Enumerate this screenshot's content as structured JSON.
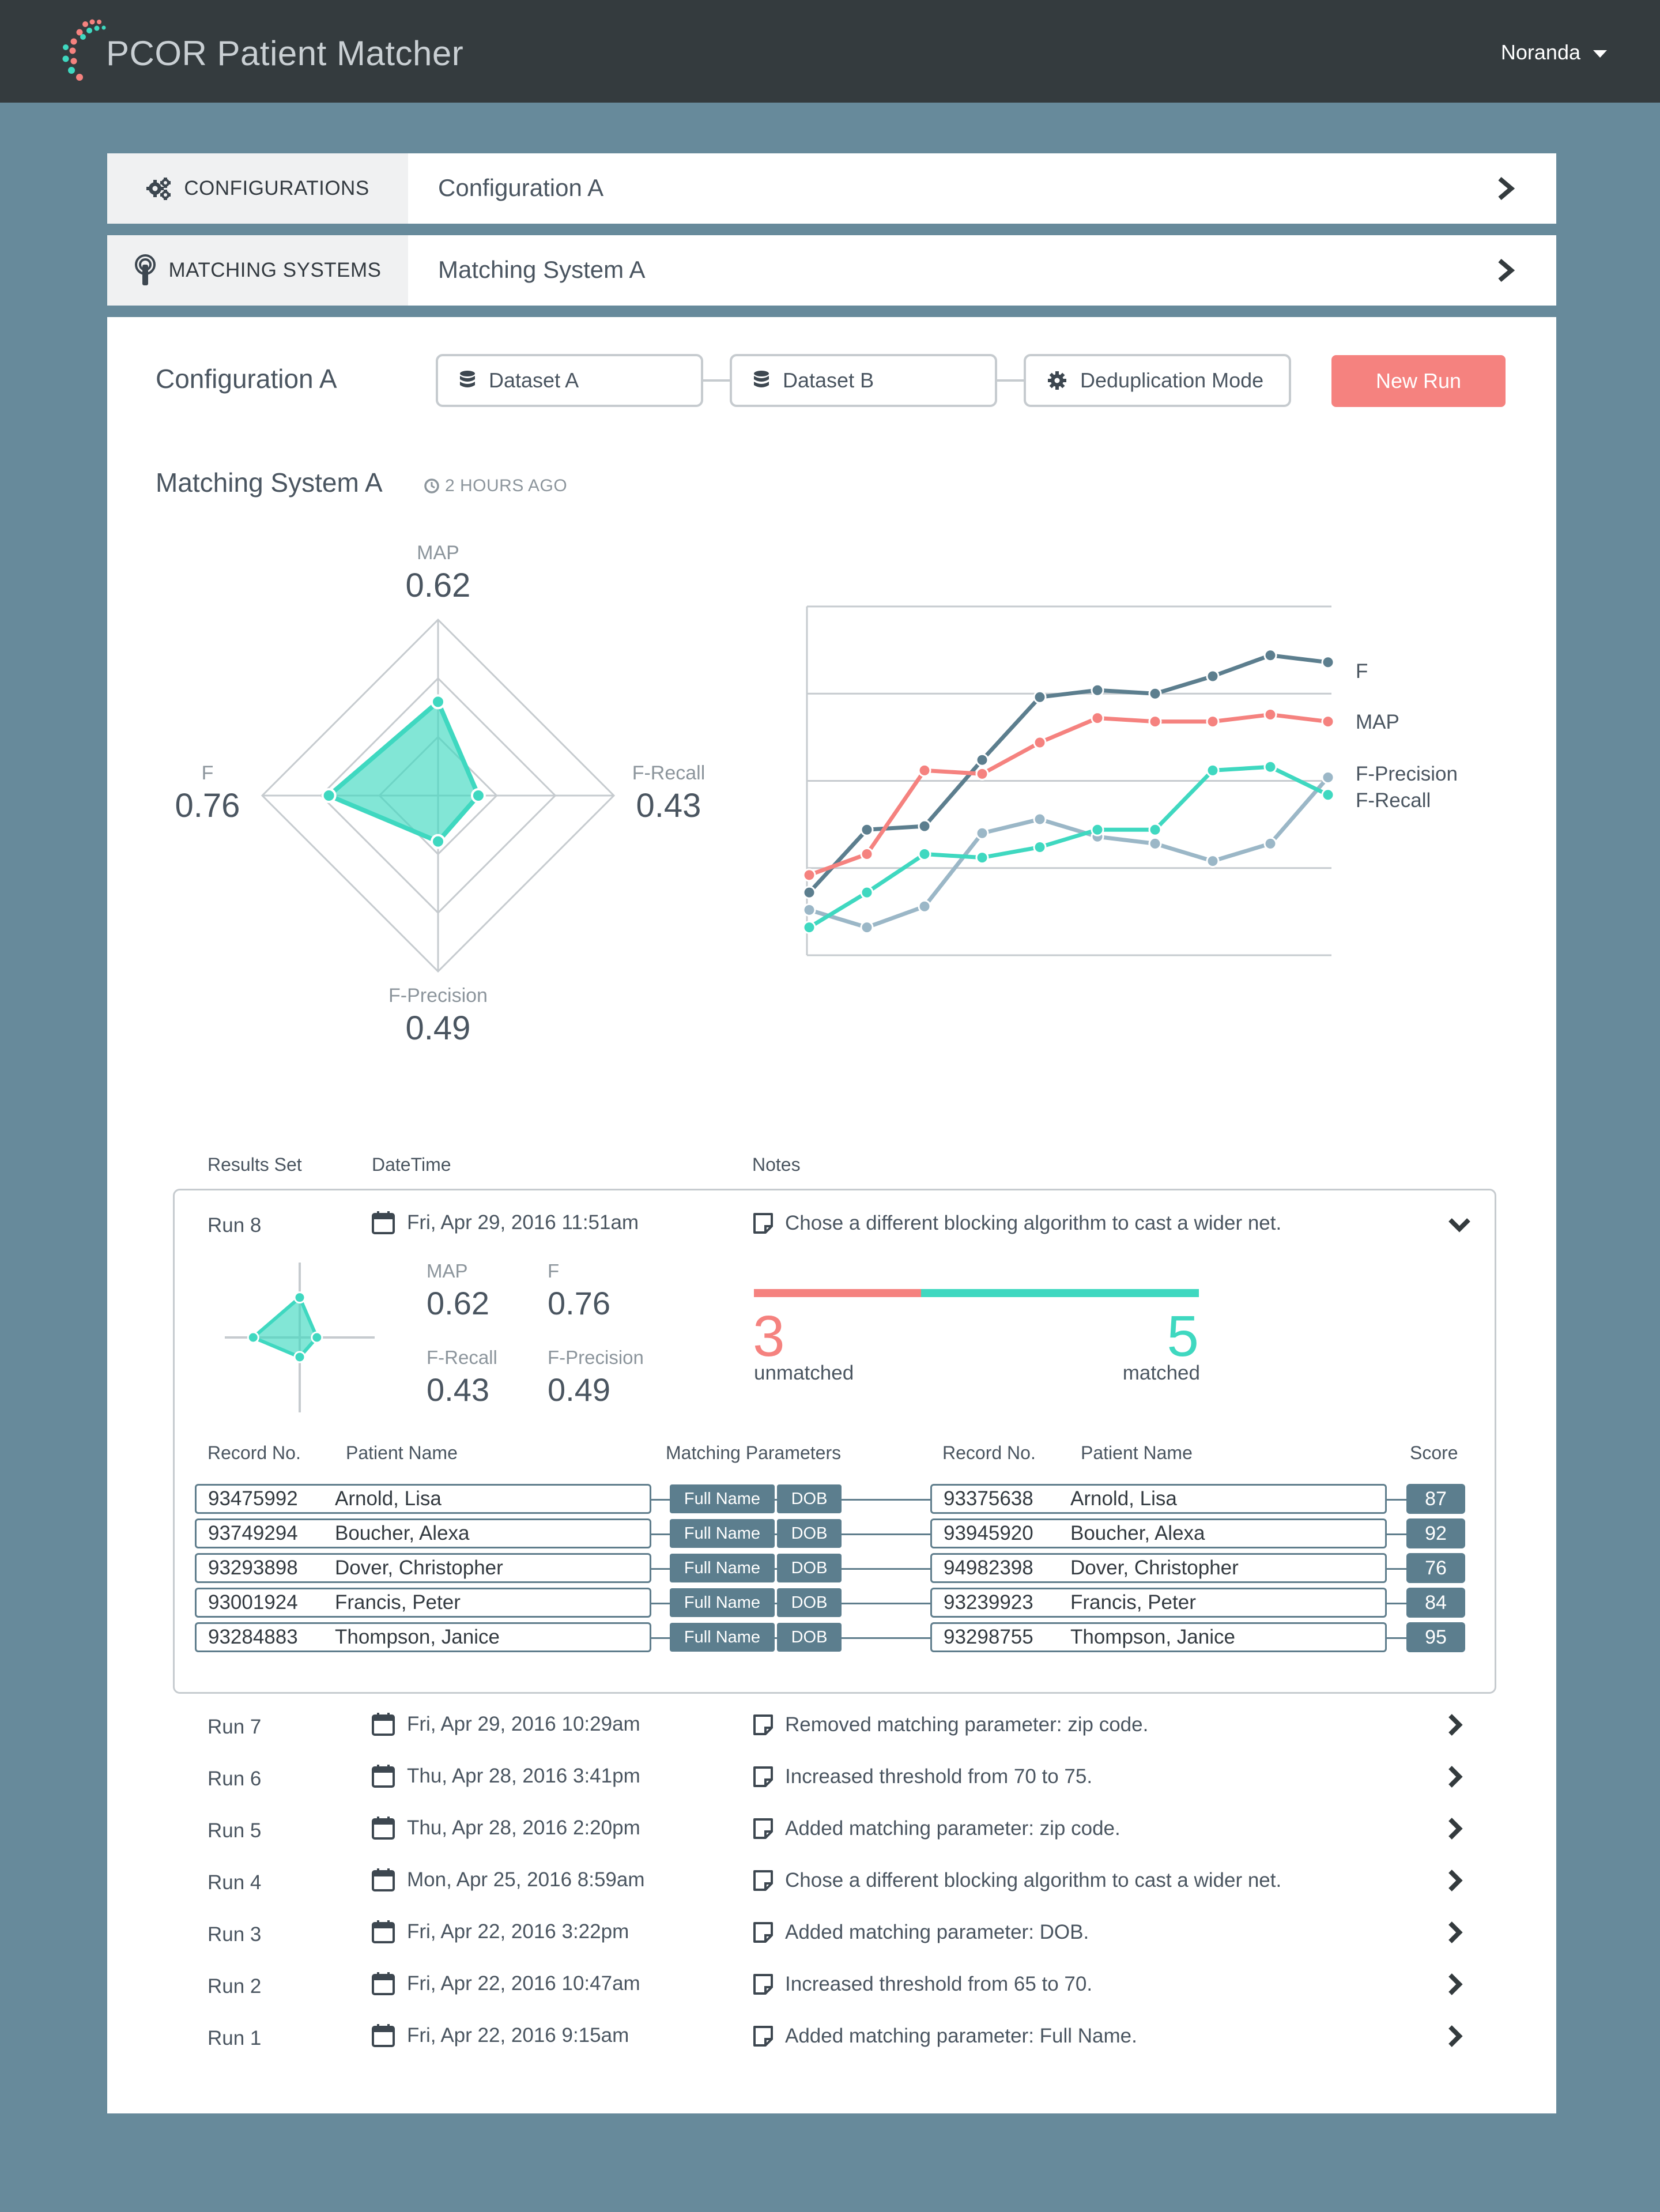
{
  "app": {
    "title": "PCOR Patient Matcher",
    "user": "Noranda"
  },
  "colors": {
    "coral": "#f5827f",
    "teal": "#3fd8c0",
    "slate": "#5c7e8e",
    "lightslate": "#9bb7c7"
  },
  "configurations": {
    "label": "CONFIGURATIONS",
    "value": "Configuration A",
    "icon": "gears-icon"
  },
  "matching_systems": {
    "label": "MATCHING SYSTEMS",
    "value": "Matching System A",
    "icon": "pin-icon"
  },
  "config": {
    "title": "Configuration A",
    "steps": [
      {
        "label": "Dataset A",
        "icon": "database-icon"
      },
      {
        "label": "Dataset B",
        "icon": "database-icon"
      },
      {
        "label": "Deduplication Mode",
        "icon": "gear-icon"
      }
    ],
    "new_run_label": "New Run"
  },
  "matching_system": {
    "title": "Matching System A",
    "time_ago": "2 HOURS AGO"
  },
  "radar": {
    "map": {
      "label": "MAP",
      "value": "0.62",
      "v": 0.62
    },
    "recall": {
      "label": "F-Recall",
      "value": "0.43",
      "v": 0.43
    },
    "precision": {
      "label": "F-Precision",
      "value": "0.49",
      "v": 0.49
    },
    "f": {
      "label": "F",
      "value": "0.76",
      "v": 0.76
    }
  },
  "chart_data": {
    "type": "line",
    "x": [
      1,
      2,
      3,
      4,
      5,
      6,
      7,
      8,
      9,
      10
    ],
    "series": [
      {
        "name": "F",
        "color": "#5c7e8e",
        "values": [
          0.18,
          0.36,
          0.37,
          0.56,
          0.74,
          0.76,
          0.75,
          0.8,
          0.86,
          0.84
        ]
      },
      {
        "name": "MAP",
        "color": "#f5827f",
        "values": [
          0.23,
          0.29,
          0.53,
          0.52,
          0.61,
          0.68,
          0.67,
          0.67,
          0.69,
          0.67
        ]
      },
      {
        "name": "F-Precision",
        "color": "#9bb7c7",
        "values": [
          0.13,
          0.08,
          0.14,
          0.35,
          0.39,
          0.34,
          0.32,
          0.27,
          0.32,
          0.51
        ]
      },
      {
        "name": "F-Recall",
        "color": "#3fd8c0",
        "values": [
          0.08,
          0.18,
          0.29,
          0.28,
          0.31,
          0.36,
          0.36,
          0.53,
          0.54,
          0.46
        ]
      }
    ],
    "ylim": [
      0,
      1
    ],
    "grid": true,
    "legend": "right"
  },
  "results": {
    "headers": {
      "set": "Results Set",
      "datetime": "DateTime",
      "notes": "Notes"
    },
    "expanded": {
      "run": "Run 8",
      "date": "Fri, Apr 29, 2016 11:51am",
      "note": "Chose a different blocking algorithm to cast a wider net.",
      "metrics": [
        {
          "label": "MAP",
          "value": "0.62"
        },
        {
          "label": "F",
          "value": "0.76"
        },
        {
          "label": "F-Recall",
          "value": "0.43"
        },
        {
          "label": "F-Precision",
          "value": "0.49"
        }
      ],
      "unmatched": {
        "count": "3",
        "label": "unmatched"
      },
      "matched": {
        "count": "5",
        "label": "matched"
      },
      "match_fraction": 0.375,
      "record_headers": {
        "rec1": "Record No.",
        "name1": "Patient Name",
        "params": "Matching Parameters",
        "rec2": "Record No.",
        "name2": "Patient Name",
        "score": "Score"
      },
      "records": [
        {
          "r1": "93475992",
          "n1": "Arnold, Lisa",
          "p1": "Full Name",
          "p2": "DOB",
          "r2": "93375638",
          "n2": "Arnold, Lisa",
          "score": "87"
        },
        {
          "r1": "93749294",
          "n1": "Boucher, Alexa",
          "p1": "Full Name",
          "p2": "DOB",
          "r2": "93945920",
          "n2": "Boucher, Alexa",
          "score": "92"
        },
        {
          "r1": "93293898",
          "n1": "Dover, Christopher",
          "p1": "Full Name",
          "p2": "DOB",
          "r2": "94982398",
          "n2": "Dover, Christopher",
          "score": "76"
        },
        {
          "r1": "93001924",
          "n1": "Francis, Peter",
          "p1": "Full Name",
          "p2": "DOB",
          "r2": "93239923",
          "n2": "Francis, Peter",
          "score": "84"
        },
        {
          "r1": "93284883",
          "n1": "Thompson, Janice",
          "p1": "Full Name",
          "p2": "DOB",
          "r2": "93298755",
          "n2": "Thompson, Janice",
          "score": "95"
        }
      ]
    },
    "runs": [
      {
        "run": "Run 7",
        "date": "Fri, Apr 29, 2016 10:29am",
        "note": "Removed matching parameter: zip code."
      },
      {
        "run": "Run 6",
        "date": "Thu, Apr 28, 2016 3:41pm",
        "note": "Increased threshold from 70 to 75."
      },
      {
        "run": "Run 5",
        "date": "Thu, Apr 28, 2016 2:20pm",
        "note": "Added matching parameter: zip code."
      },
      {
        "run": "Run 4",
        "date": "Mon, Apr 25, 2016 8:59am",
        "note": "Chose a different blocking algorithm to cast a wider net."
      },
      {
        "run": "Run 3",
        "date": "Fri, Apr 22, 2016 3:22pm",
        "note": "Added matching parameter: DOB."
      },
      {
        "run": "Run 2",
        "date": "Fri, Apr 22, 2016 10:47am",
        "note": "Increased threshold from 65 to 70."
      },
      {
        "run": "Run 1",
        "date": "Fri, Apr 22, 2016 9:15am",
        "note": "Added matching parameter: Full Name."
      }
    ]
  }
}
